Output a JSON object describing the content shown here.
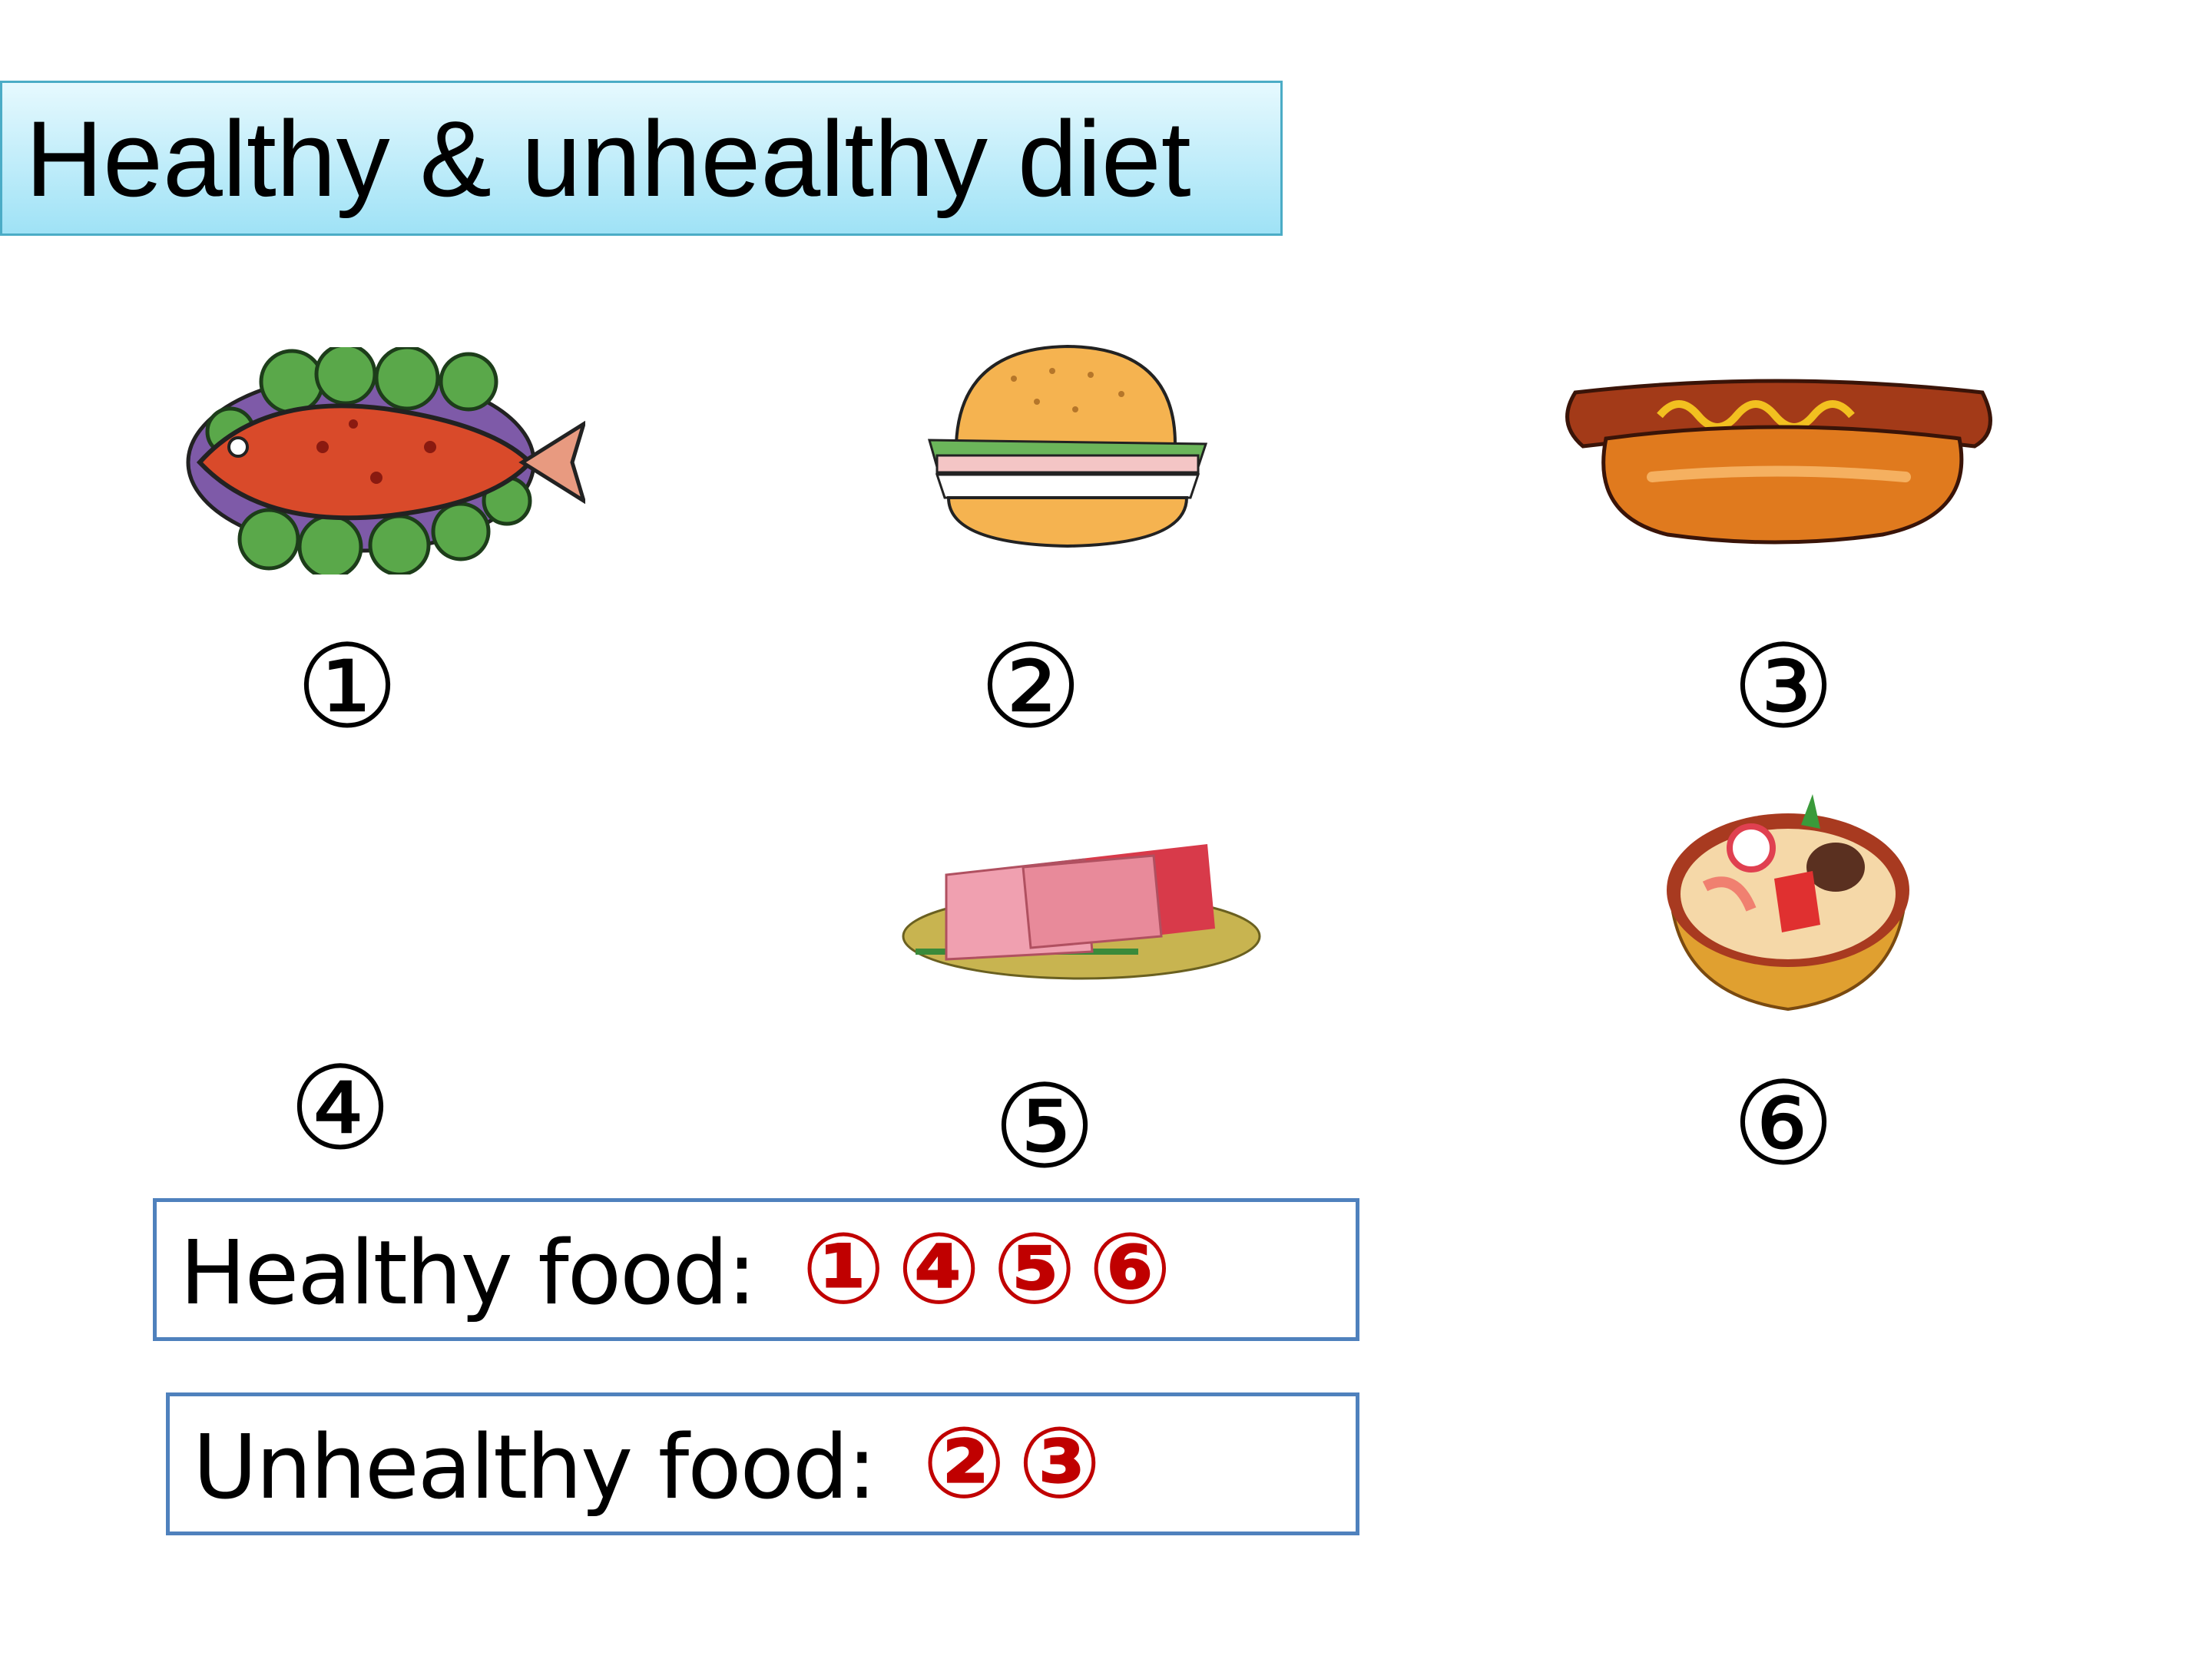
{
  "title": "Healthy & unhealthy diet",
  "items": [
    {
      "number": "①",
      "icon": "fish-dish-icon"
    },
    {
      "number": "②",
      "icon": "hamburger-icon"
    },
    {
      "number": "③",
      "icon": "hotdog-icon"
    },
    {
      "number": "④",
      "icon": ""
    },
    {
      "number": "⑤",
      "icon": "raw-meat-icon"
    },
    {
      "number": "⑥",
      "icon": "noodle-soup-icon"
    }
  ],
  "healthy": {
    "label": "Healthy food:",
    "answer": "①④⑤⑥"
  },
  "unhealthy": {
    "label": "Unhealthy food:",
    "answer": "②③"
  },
  "colors": {
    "answer": "#c00000",
    "box_border": "#4f81bd",
    "title_border": "#4bacc6"
  }
}
